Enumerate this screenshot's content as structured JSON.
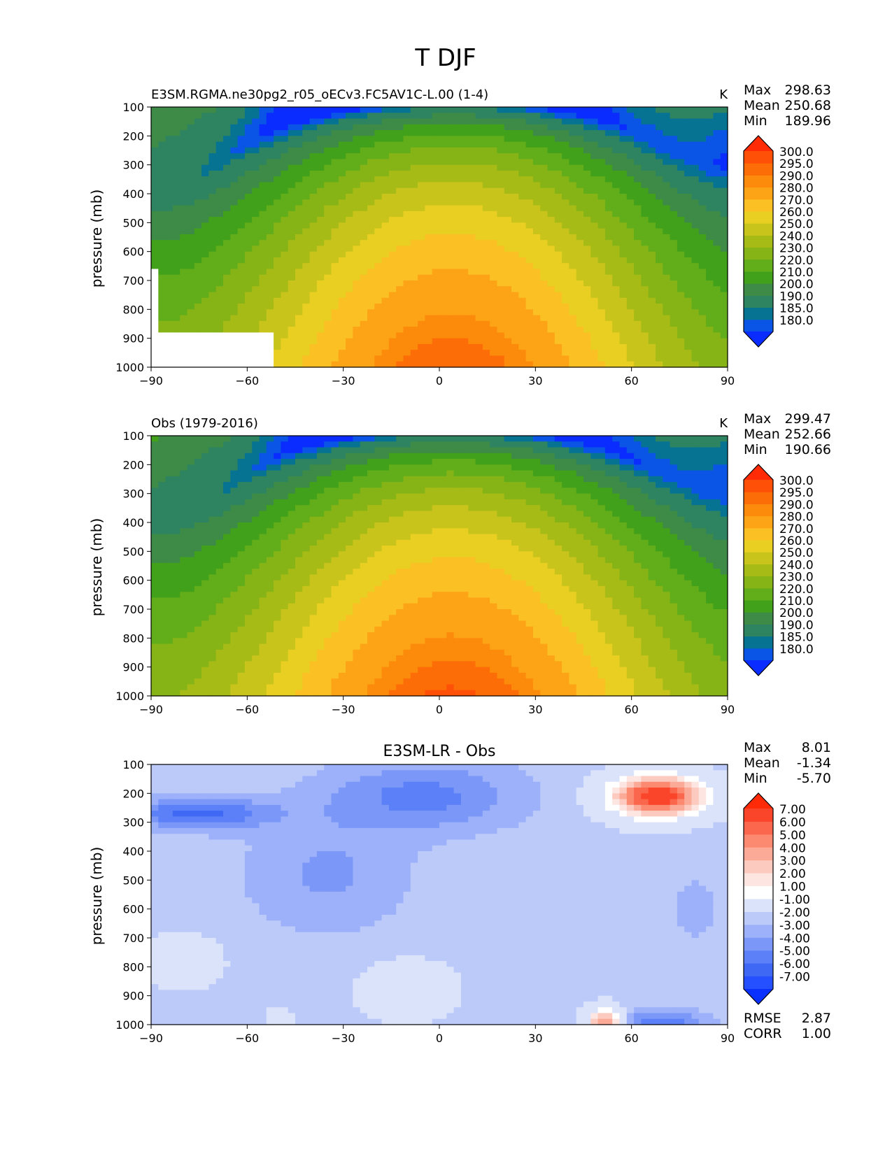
{
  "figure": {
    "title": "T DJF"
  },
  "chart_data": [
    {
      "type": "contour",
      "title": "E3SM.RGMA.ne30pg2_r05_oECv3.FC5AV1C-L.00 (1-4)",
      "units": "K",
      "xlabel": "",
      "ylabel": "pressure (mb)",
      "xlim": [
        -90,
        90
      ],
      "ylim": [
        1000,
        100
      ],
      "x_ticks": [
        "−90",
        "−60",
        "−30",
        "0",
        "30",
        "60",
        "90"
      ],
      "y_ticks": [
        "100",
        "200",
        "300",
        "400",
        "500",
        "600",
        "700",
        "800",
        "900",
        "1000"
      ],
      "stats": {
        "max_label": "Max",
        "max": "298.63",
        "mean_label": "Mean",
        "mean": "250.68",
        "min_label": "Min",
        "min": "189.96"
      },
      "field": {
        "kind": "abs",
        "dx": 0,
        "dt": 0,
        "mask": true
      },
      "colorbar": {
        "levels": [
          "180.0",
          "185.0",
          "190.0",
          "200.0",
          "210.0",
          "220.0",
          "230.0",
          "240.0",
          "250.0",
          "260.0",
          "270.0",
          "280.0",
          "290.0",
          "295.0",
          "300.0"
        ],
        "colors": [
          "#0b2cff",
          "#0a55e6",
          "#077393",
          "#2e8461",
          "#3d8b46",
          "#42a11a",
          "#62ad1a",
          "#86b417",
          "#a7bb16",
          "#c9c41c",
          "#e8cf22",
          "#fbc023",
          "#fca316",
          "#fc8a0b",
          "#fd6d07",
          "#fe5006",
          "#ff2a06"
        ]
      }
    },
    {
      "type": "contour",
      "title": "Obs (1979-2016)",
      "units": "K",
      "xlabel": "",
      "ylabel": "pressure (mb)",
      "xlim": [
        -90,
        90
      ],
      "ylim": [
        1000,
        100
      ],
      "x_ticks": [
        "−90",
        "−60",
        "−30",
        "0",
        "30",
        "60",
        "90"
      ],
      "y_ticks": [
        "100",
        "200",
        "300",
        "400",
        "500",
        "600",
        "700",
        "800",
        "900",
        "1000"
      ],
      "stats": {
        "max_label": "Max",
        "max": "299.47",
        "mean_label": "Mean",
        "mean": "252.66",
        "min_label": "Min",
        "min": "190.66"
      },
      "field": {
        "kind": "abs",
        "dx": 1.5,
        "dt": 1.5,
        "mask": false
      },
      "colorbar": {
        "levels": [
          "180.0",
          "185.0",
          "190.0",
          "200.0",
          "210.0",
          "220.0",
          "230.0",
          "240.0",
          "250.0",
          "260.0",
          "270.0",
          "280.0",
          "290.0",
          "295.0",
          "300.0"
        ],
        "colors": [
          "#0b2cff",
          "#0a55e6",
          "#077393",
          "#2e8461",
          "#3d8b46",
          "#42a11a",
          "#62ad1a",
          "#86b417",
          "#a7bb16",
          "#c9c41c",
          "#e8cf22",
          "#fbc023",
          "#fca316",
          "#fc8a0b",
          "#fd6d07",
          "#fe5006",
          "#ff2a06"
        ]
      }
    },
    {
      "type": "contour",
      "title": "E3SM-LR - Obs",
      "title_position": "center",
      "units": "",
      "xlabel": "",
      "ylabel": "pressure (mb)",
      "xlim": [
        -90,
        90
      ],
      "ylim": [
        1000,
        100
      ],
      "x_ticks": [
        "−90",
        "−60",
        "−30",
        "0",
        "30",
        "60",
        "90"
      ],
      "y_ticks": [
        "100",
        "200",
        "300",
        "400",
        "500",
        "600",
        "700",
        "800",
        "900",
        "1000"
      ],
      "stats": {
        "max_label": "Max",
        "max": "8.01",
        "mean_label": "Mean",
        "mean": "-1.34",
        "min_label": "Min",
        "min": "-5.70"
      },
      "metrics": {
        "rmse_label": "RMSE",
        "rmse": "2.87",
        "corr_label": "CORR",
        "corr": "1.00"
      },
      "field": {
        "kind": "diff"
      },
      "colorbar": {
        "levels": [
          "-7.00",
          "-6.00",
          "-5.00",
          "-4.00",
          "-3.00",
          "-2.00",
          "-1.00",
          "1.00",
          "2.00",
          "3.00",
          "4.00",
          "5.00",
          "6.00",
          "7.00"
        ],
        "colors": [
          "#0a30ff",
          "#2450ff",
          "#3f68f5",
          "#5c80f7",
          "#7b98f8",
          "#9cb1f9",
          "#bccaf9",
          "#dbe3fb",
          "#ffffff",
          "#fde6e2",
          "#fccabf",
          "#fcaa98",
          "#fb8a70",
          "#fb674c",
          "#fb452b",
          "#ff2a08"
        ]
      }
    }
  ]
}
